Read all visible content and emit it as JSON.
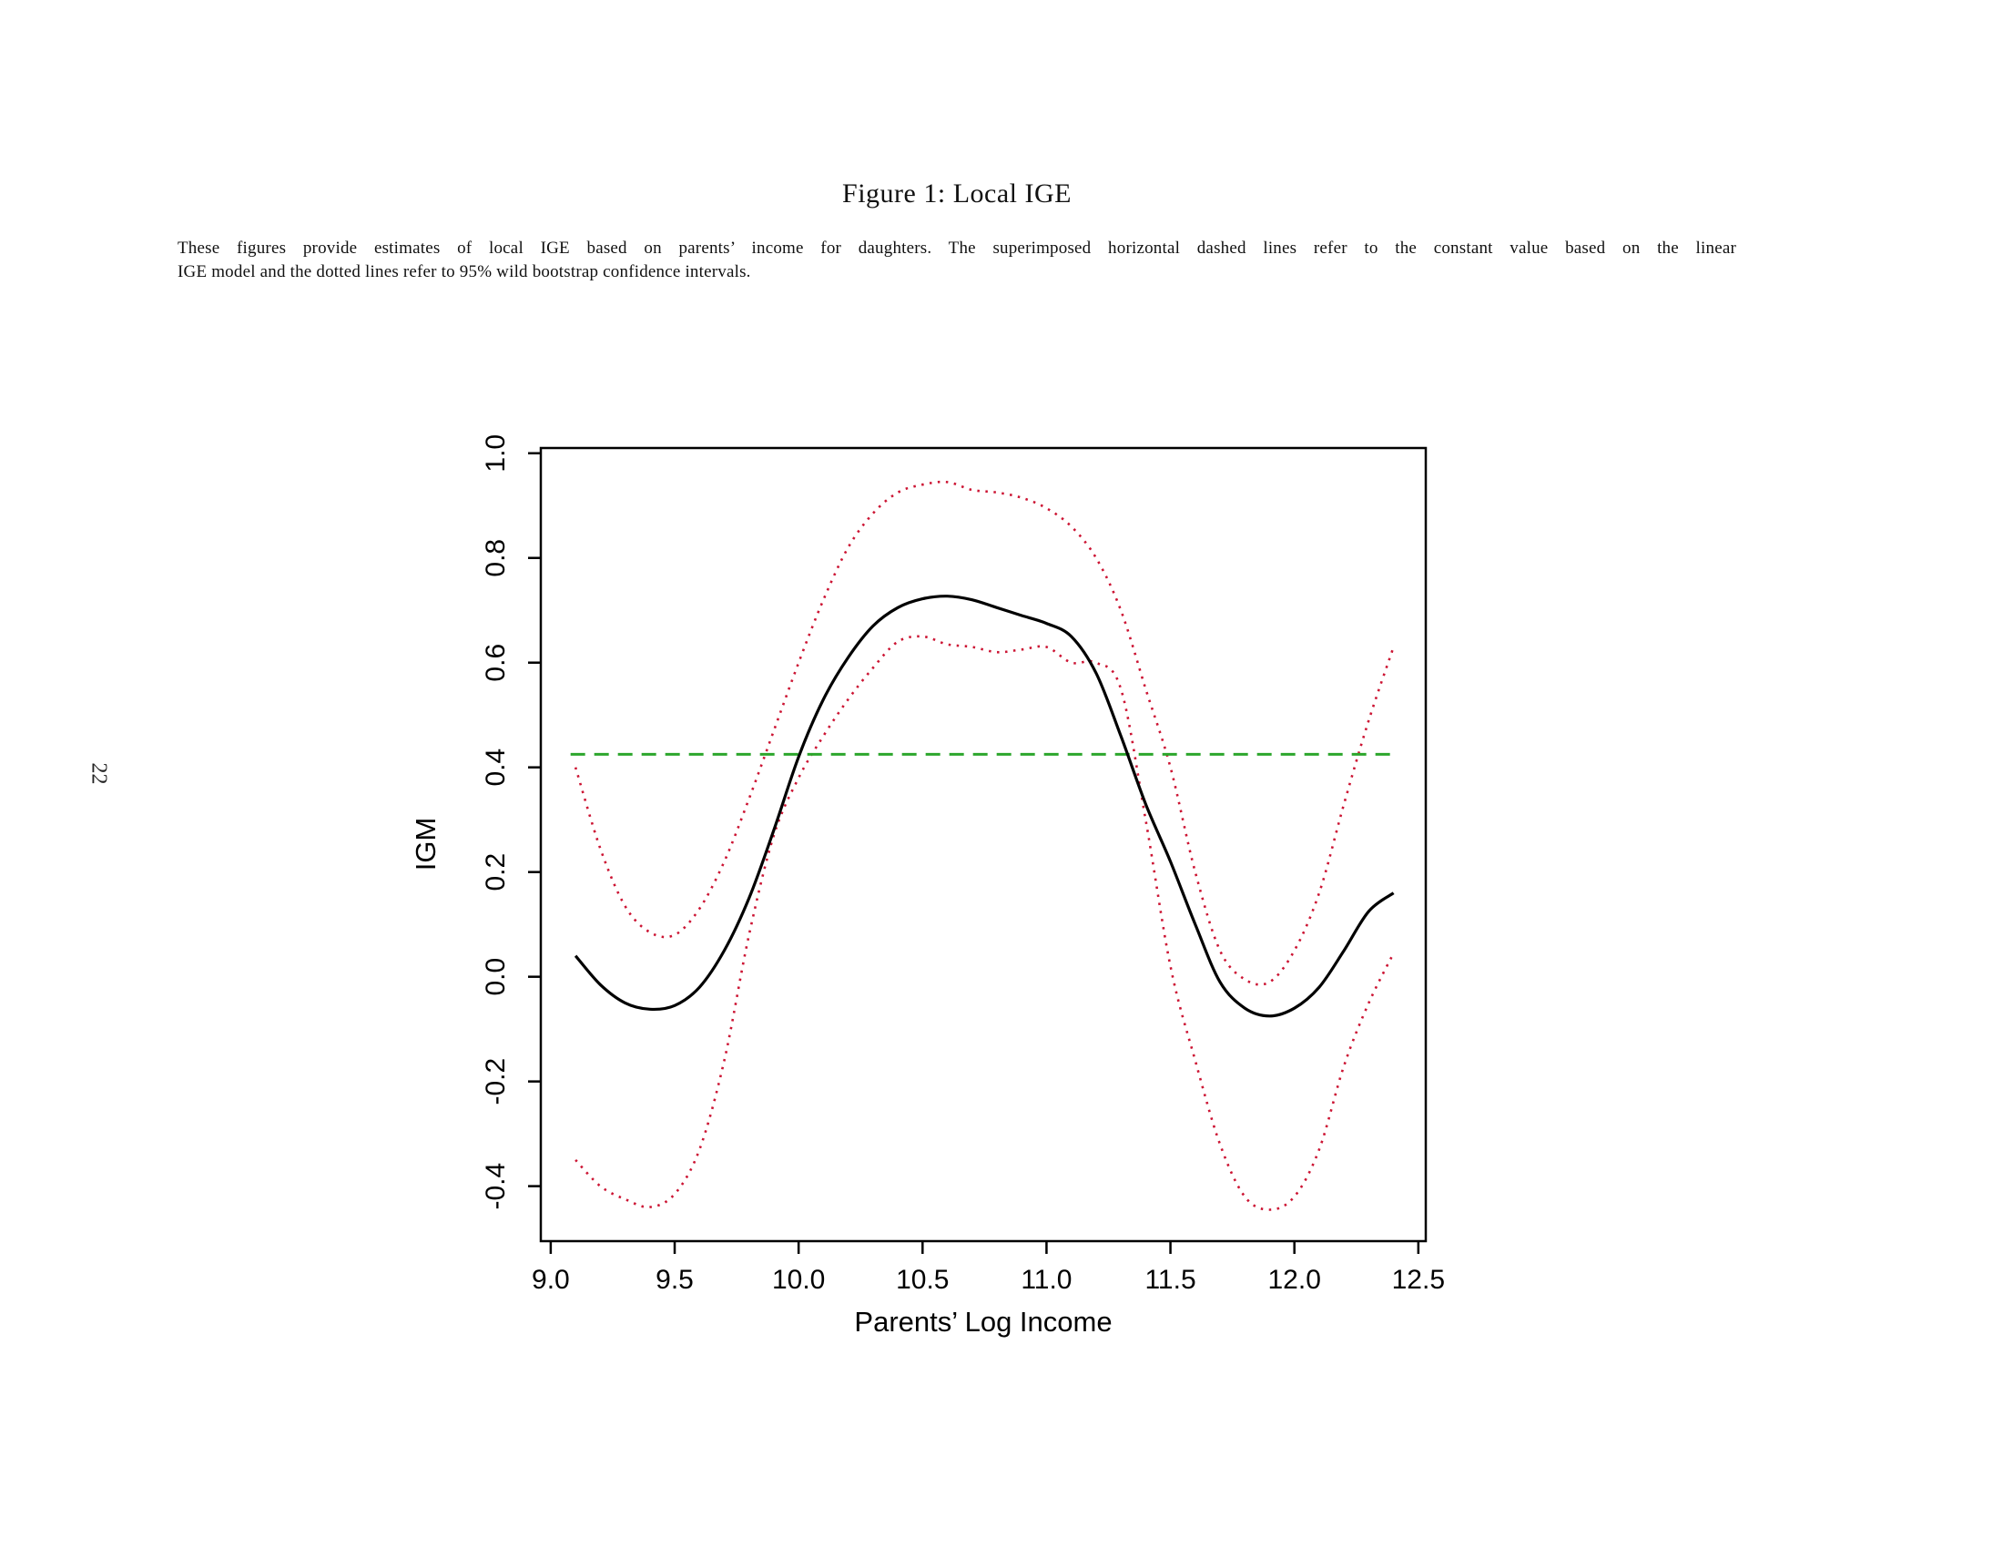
{
  "page": {
    "number": "22",
    "background": "#ffffff"
  },
  "figure": {
    "title": "Figure 1: Local IGE",
    "caption_lines": [
      "These figures provide estimates of local IGE based on parents’ income for daughters. The superimposed horizontal dashed lines refer to the constant value based on the linear",
      "IGE model and the dotted lines refer to 95% wild bootstrap confidence intervals."
    ]
  },
  "chart_data": {
    "type": "line",
    "title": "Figure 1: Local IGE",
    "xlabel": "Parents’ Log Income",
    "ylabel": "IGM",
    "xlim": [
      8.96,
      12.53
    ],
    "ylim": [
      -0.505,
      1.01
    ],
    "x_ticks": [
      9.0,
      9.5,
      10.0,
      10.5,
      11.0,
      11.5,
      12.0,
      12.5
    ],
    "x_tick_labels": [
      "9.0",
      "9.5",
      "10.0",
      "10.5",
      "11.0",
      "11.5",
      "12.0",
      "12.5"
    ],
    "y_ticks": [
      -0.4,
      -0.2,
      0.0,
      0.2,
      0.4,
      0.6,
      0.8,
      1.0
    ],
    "y_tick_labels": [
      "-0.4",
      "-0.2",
      "0.0",
      "0.2",
      "0.4",
      "0.6",
      "0.8",
      "1.0"
    ],
    "grid": false,
    "legend": null,
    "colors": {
      "estimate": "#000000",
      "ci": "#cc1433",
      "linear_ige": "#2ca62c"
    },
    "series": [
      {
        "name": "ci-upper-95",
        "label": "95% wild bootstrap CI (upper, dotted)",
        "line_style": "dotted",
        "color": "#cc1433",
        "x": [
          9.1,
          9.2,
          9.3,
          9.4,
          9.5,
          9.6,
          9.7,
          9.8,
          9.9,
          10.0,
          10.1,
          10.2,
          10.3,
          10.4,
          10.5,
          10.6,
          10.7,
          10.8,
          10.9,
          11.0,
          11.1,
          11.2,
          11.3,
          11.4,
          11.5,
          11.6,
          11.7,
          11.8,
          11.9,
          12.0,
          12.1,
          12.2,
          12.3,
          12.4
        ],
        "y": [
          0.4,
          0.245,
          0.135,
          0.085,
          0.08,
          0.13,
          0.22,
          0.34,
          0.47,
          0.6,
          0.72,
          0.82,
          0.885,
          0.925,
          0.94,
          0.945,
          0.93,
          0.925,
          0.915,
          0.895,
          0.86,
          0.8,
          0.7,
          0.55,
          0.4,
          0.2,
          0.05,
          -0.005,
          -0.01,
          0.05,
          0.16,
          0.33,
          0.49,
          0.63
        ]
      },
      {
        "name": "ci-lower-95",
        "label": "95% wild bootstrap CI (lower, dotted)",
        "line_style": "dotted",
        "color": "#cc1433",
        "x": [
          9.1,
          9.2,
          9.3,
          9.4,
          9.5,
          9.6,
          9.7,
          9.8,
          9.9,
          10.0,
          10.1,
          10.2,
          10.3,
          10.4,
          10.5,
          10.6,
          10.7,
          10.8,
          10.9,
          11.0,
          11.1,
          11.2,
          11.3,
          11.4,
          11.5,
          11.6,
          11.7,
          11.8,
          11.9,
          12.0,
          12.1,
          12.2,
          12.3,
          12.4
        ],
        "y": [
          -0.35,
          -0.4,
          -0.425,
          -0.44,
          -0.415,
          -0.33,
          -0.16,
          0.08,
          0.27,
          0.38,
          0.46,
          0.53,
          0.59,
          0.64,
          0.65,
          0.635,
          0.63,
          0.62,
          0.625,
          0.63,
          0.6,
          0.6,
          0.55,
          0.3,
          0.02,
          -0.16,
          -0.32,
          -0.42,
          -0.445,
          -0.42,
          -0.33,
          -0.17,
          -0.05,
          0.045
        ]
      },
      {
        "name": "linear-ige-constant",
        "label": "Constant linear IGE (dashed)",
        "line_style": "dashed",
        "color": "#2ca62c",
        "x": [
          9.08,
          12.4
        ],
        "y": [
          0.425,
          0.425
        ]
      },
      {
        "name": "local-ige-estimate",
        "label": "Local IGE estimate (solid)",
        "line_style": "solid",
        "color": "#000000",
        "x": [
          9.1,
          9.2,
          9.3,
          9.4,
          9.5,
          9.6,
          9.7,
          9.8,
          9.9,
          10.0,
          10.1,
          10.2,
          10.3,
          10.4,
          10.5,
          10.6,
          10.7,
          10.8,
          10.9,
          11.0,
          11.1,
          11.2,
          11.3,
          11.4,
          11.5,
          11.6,
          11.7,
          11.8,
          11.9,
          12.0,
          12.1,
          12.2,
          12.3,
          12.4
        ],
        "y": [
          0.04,
          -0.015,
          -0.05,
          -0.062,
          -0.055,
          -0.02,
          0.05,
          0.15,
          0.28,
          0.42,
          0.53,
          0.61,
          0.67,
          0.705,
          0.722,
          0.727,
          0.72,
          0.705,
          0.69,
          0.675,
          0.65,
          0.58,
          0.46,
          0.33,
          0.22,
          0.1,
          -0.01,
          -0.06,
          -0.075,
          -0.06,
          -0.02,
          0.05,
          0.125,
          0.16
        ]
      }
    ]
  }
}
